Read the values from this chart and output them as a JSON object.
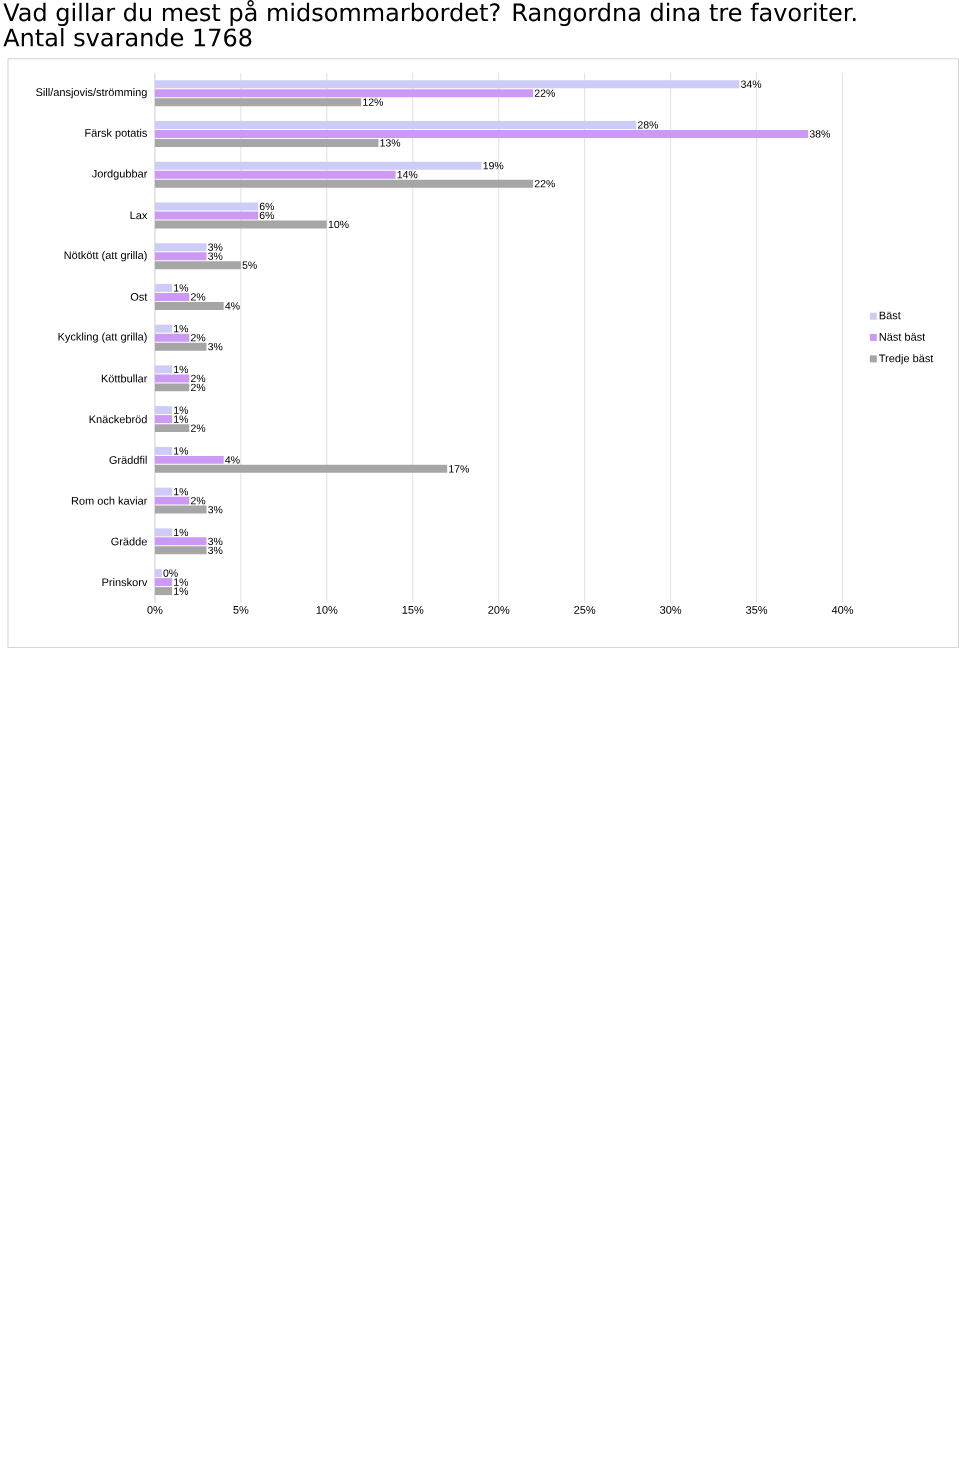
{
  "chart_data": {
    "type": "bar",
    "orientation": "horizontal",
    "title": "Vad gillar du mest på midsommarbordet? Rangordna dina tre favoriter.",
    "subtitle": "Antal svarande 1768",
    "categories": [
      "Sill/ansjovis/strömming",
      "Färsk potatis",
      "Jordgubbar",
      "Lax",
      "Nötkött (att grilla)",
      "Ost",
      "Kyckling (att grilla)",
      "Köttbullar",
      "Knäckebröd",
      "Gräddfil",
      "Rom och kaviar",
      "Grädde",
      "Prinskorv"
    ],
    "series": [
      {
        "name": "Bäst",
        "color": "#ccccf7",
        "values": [
          34,
          28,
          19,
          6,
          3,
          1,
          1,
          1,
          1,
          1,
          1,
          1,
          0.4
        ],
        "value_labels": [
          "34%",
          "28%",
          "19%",
          "6%",
          "3%",
          "1%",
          "1%",
          "1%",
          "1%",
          "1%",
          "1%",
          "1%",
          "0%"
        ]
      },
      {
        "name": "Näst bäst",
        "color": "#cc99f5",
        "values": [
          22,
          38,
          14,
          6,
          3,
          2,
          2,
          2,
          1,
          4,
          2,
          3,
          1
        ],
        "value_labels": [
          "22%",
          "38%",
          "14%",
          "6%",
          "3%",
          "2%",
          "2%",
          "2%",
          "1%",
          "4%",
          "2%",
          "3%",
          "1%"
        ]
      },
      {
        "name": "Tredje bäst",
        "color": "#a6a6a6",
        "values": [
          12,
          13,
          22,
          10,
          5,
          4,
          3,
          2,
          2,
          17,
          3,
          3,
          1
        ],
        "value_labels": [
          "12%",
          "13%",
          "22%",
          "10%",
          "5%",
          "4%",
          "3%",
          "2%",
          "2%",
          "17%",
          "3%",
          "3%",
          "1%"
        ]
      }
    ],
    "xlim": [
      0,
      40
    ],
    "xticks": [
      {
        "value": 0,
        "label": "0%"
      },
      {
        "value": 5,
        "label": "5%"
      },
      {
        "value": 10,
        "label": "10%"
      },
      {
        "value": 15,
        "label": "15%"
      },
      {
        "value": 20,
        "label": "20%"
      },
      {
        "value": 25,
        "label": "25%"
      },
      {
        "value": 30,
        "label": "30%"
      },
      {
        "value": 35,
        "label": "35%"
      },
      {
        "value": 40,
        "label": "40%"
      }
    ],
    "grid": "x",
    "legend": "right"
  }
}
